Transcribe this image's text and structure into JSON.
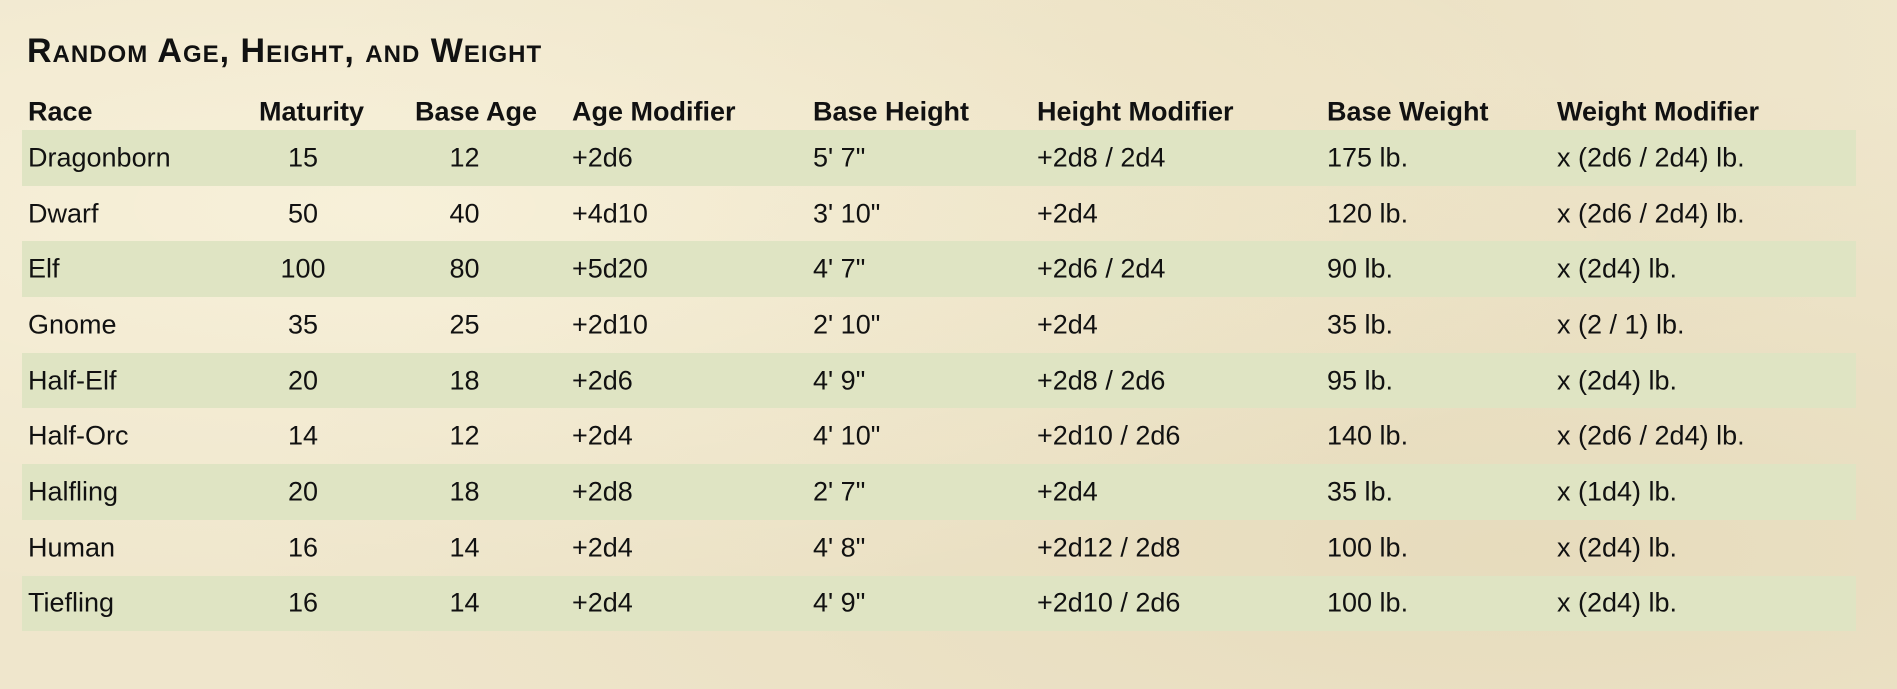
{
  "title": "Random Age, Height, and Weight",
  "columns": [
    "Race",
    "Maturity",
    "Base Age",
    "Age Modifier",
    "Base Height",
    "Height Modifier",
    "Base Weight",
    "Weight Modifier"
  ],
  "rows": [
    [
      "Dragonborn",
      "15",
      "12",
      "+2d6",
      "5' 7\"",
      "+2d8 / 2d4",
      "175 lb.",
      "x (2d6 / 2d4) lb."
    ],
    [
      "Dwarf",
      "50",
      "40",
      "+4d10",
      "3' 10\"",
      "+2d4",
      "120 lb.",
      "x (2d6 / 2d4) lb."
    ],
    [
      "Elf",
      "100",
      "80",
      "+5d20",
      "4' 7\"",
      "+2d6 / 2d4",
      "90 lb.",
      "x (2d4) lb."
    ],
    [
      "Gnome",
      "35",
      "25",
      "+2d10",
      "2' 10\"",
      "+2d4",
      "35 lb.",
      "x (2 / 1) lb."
    ],
    [
      "Half-Elf",
      "20",
      "18",
      "+2d6",
      "4' 9\"",
      "+2d8 / 2d6",
      "95 lb.",
      "x (2d4) lb."
    ],
    [
      "Half-Orc",
      "14",
      "12",
      "+2d4",
      "4' 10\"",
      "+2d10 / 2d6",
      "140 lb.",
      "x (2d6 / 2d4) lb."
    ],
    [
      "Halfling",
      "20",
      "18",
      "+2d8",
      "2' 7\"",
      "+2d4",
      "35 lb.",
      "x (1d4) lb."
    ],
    [
      "Human",
      "16",
      "14",
      "+2d4",
      "4' 8\"",
      "+2d12 / 2d8",
      "100 lb.",
      "x (2d4) lb."
    ],
    [
      "Tiefling",
      "16",
      "14",
      "+2d4",
      "4' 9\"",
      "+2d10 / 2d6",
      "100 lb.",
      "x (2d4) lb."
    ]
  ],
  "colors": {
    "band": "#dfe4c3",
    "parchment": "#efe6cc"
  }
}
